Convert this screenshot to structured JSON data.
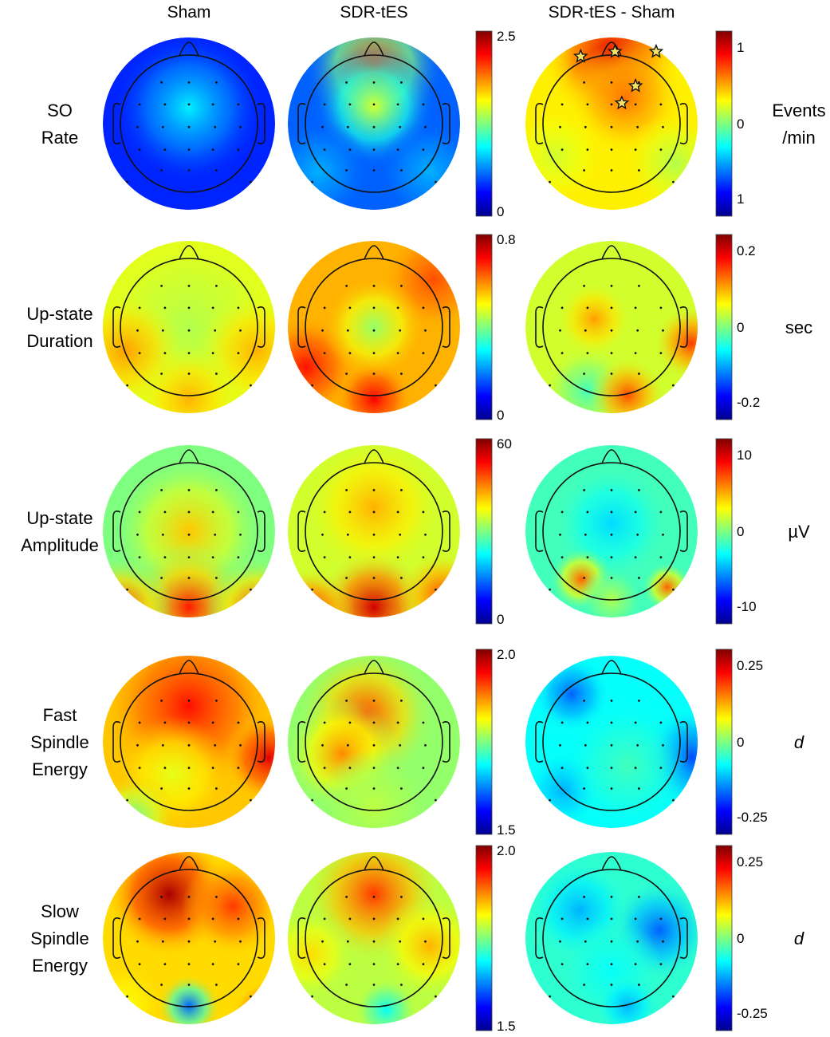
{
  "column_headers": [
    "Sham",
    "SDR-tES",
    "SDR-tES - Sham"
  ],
  "colormap": [
    "#00008f",
    "#0000ff",
    "#007fff",
    "#00ffff",
    "#7fff7f",
    "#ffff00",
    "#ff7f00",
    "#ff0000",
    "#7f0000"
  ],
  "rows": [
    {
      "label": [
        "SO",
        "Rate"
      ],
      "colorbar_left": {
        "max_label": "2.5",
        "min_label": "0"
      },
      "colorbar_right": {
        "ticks": [
          "1",
          "0",
          "1"
        ]
      },
      "unit": [
        "Events",
        "/min"
      ],
      "unit_italic": false
    },
    {
      "label": [
        "Up-state",
        "Duration"
      ],
      "colorbar_left": {
        "max_label": "0.8",
        "min_label": "0"
      },
      "colorbar_right": {
        "ticks": [
          "0.2",
          "0",
          "-0.2"
        ]
      },
      "unit": [
        "sec"
      ],
      "unit_italic": false
    },
    {
      "label": [
        "Up-state",
        "Amplitude"
      ],
      "colorbar_left": {
        "max_label": "60",
        "min_label": "0"
      },
      "colorbar_right": {
        "ticks": [
          "10",
          "0",
          "-10"
        ]
      },
      "unit": [
        "µV"
      ],
      "unit_italic": false
    },
    {
      "label": [
        "Fast",
        "Spindle",
        "Energy"
      ],
      "colorbar_left": {
        "max_label": "2.0",
        "min_label": "1.5"
      },
      "colorbar_right": {
        "ticks": [
          "0.25",
          "0",
          "-0.25"
        ]
      },
      "unit": [
        "d"
      ],
      "unit_italic": true
    },
    {
      "label": [
        "Slow",
        "Spindle",
        "Energy"
      ],
      "colorbar_left": {
        "max_label": "2.0",
        "min_label": "1.5"
      },
      "colorbar_right": {
        "ticks": [
          "0.25",
          "0",
          "-0.25"
        ]
      },
      "unit": [
        "d"
      ],
      "unit_italic": true
    }
  ]
}
